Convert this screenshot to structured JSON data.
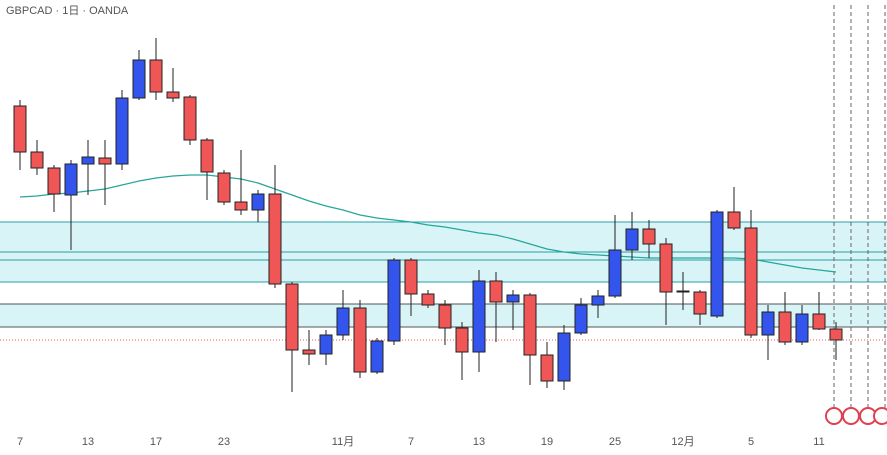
{
  "chart_data": {
    "type": "candlestick",
    "title": "GBPCAD · 1日 · OANDA",
    "categories": [
      "7",
      null,
      null,
      null,
      "13",
      null,
      null,
      null,
      "17",
      null,
      null,
      null,
      "23",
      null,
      null,
      null,
      null,
      null,
      null,
      "11月",
      null,
      null,
      null,
      "7",
      null,
      null,
      null,
      "13",
      null,
      null,
      null,
      "19",
      null,
      null,
      null,
      "25",
      null,
      null,
      null,
      "12月",
      null,
      null,
      null,
      "5",
      null,
      null,
      null,
      "11",
      null
    ],
    "open": [
      349,
      303,
      287,
      260,
      291,
      297,
      291,
      357,
      395,
      363,
      358,
      315,
      282,
      253,
      245,
      261,
      171,
      105,
      101,
      120,
      147,
      83,
      114,
      195,
      161,
      150,
      127,
      103,
      174,
      153,
      160,
      100,
      74,
      122,
      150,
      159,
      205,
      226,
      211,
      164,
      163,
      139,
      243,
      227,
      120,
      143,
      113,
      141,
      126
    ],
    "high": [
      355,
      315,
      290,
      295,
      315,
      315,
      365,
      405,
      417,
      387,
      360,
      317,
      285,
      305,
      265,
      290,
      173,
      125,
      125,
      165,
      155,
      117,
      197,
      197,
      165,
      155,
      133,
      185,
      183,
      165,
      162,
      113,
      130,
      157,
      165,
      240,
      243,
      235,
      217,
      183,
      165,
      245,
      268,
      245,
      150,
      163,
      150,
      163,
      133
    ],
    "low": [
      285,
      280,
      243,
      205,
      260,
      250,
      285,
      355,
      355,
      353,
      310,
      255,
      250,
      240,
      233,
      167,
      63,
      90,
      90,
      115,
      77,
      81,
      110,
      139,
      147,
      110,
      75,
      83,
      113,
      125,
      70,
      67,
      65,
      120,
      137,
      157,
      195,
      197,
      130,
      145,
      130,
      137,
      225,
      117,
      95,
      110,
      110,
      125,
      95
    ],
    "close": [
      303,
      287,
      261,
      291,
      298,
      291,
      357,
      395,
      363,
      357,
      315,
      283,
      253,
      245,
      261,
      171,
      105,
      101,
      120,
      147,
      83,
      114,
      195,
      161,
      150,
      127,
      103,
      174,
      153,
      160,
      100,
      74,
      122,
      150,
      159,
      205,
      226,
      211,
      163,
      163,
      141,
      243,
      227,
      120,
      143,
      113,
      141,
      126,
      115
    ],
    "up_color": "#3355ee",
    "down_color": "#f05656",
    "ma": {
      "color": "#26a69a",
      "values": [
        258,
        259,
        261,
        262,
        264,
        266,
        270,
        274,
        277,
        279,
        280,
        280,
        278,
        276,
        272,
        266,
        260,
        254,
        249,
        245,
        240,
        237,
        235,
        233,
        230,
        228,
        225,
        222,
        220,
        216,
        211,
        206,
        203,
        201,
        200,
        199,
        198,
        197,
        197,
        197,
        197,
        197,
        197,
        196,
        193,
        190,
        187,
        185,
        183
      ]
    },
    "zones": [
      {
        "low": 173,
        "high": 233,
        "color": "#26a0a8"
      },
      {
        "low": 128,
        "high": 151,
        "color": "#555555"
      }
    ],
    "levels": [
      203,
      195
    ],
    "last_price": 115,
    "ylim": [
      0,
      455
    ]
  }
}
